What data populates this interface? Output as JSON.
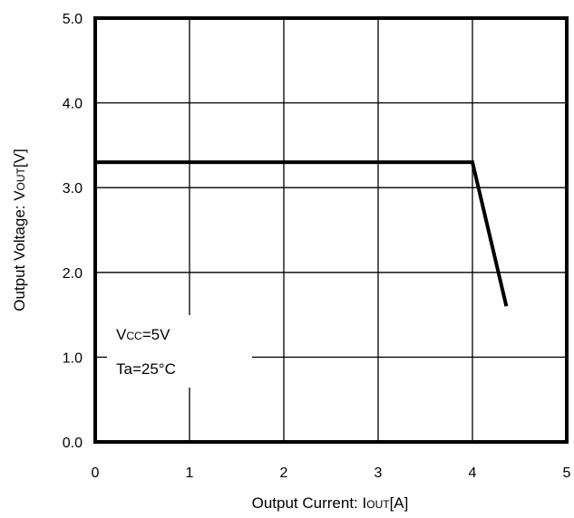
{
  "chart_data": {
    "type": "line",
    "xlabel_main": "Output Current: I",
    "xlabel_sub": "OUT",
    "xlabel_unit": "[A]",
    "ylabel_main": "Output Voltage: V",
    "ylabel_sub": "OUT",
    "ylabel_unit": "[V]",
    "xlim": [
      0,
      5
    ],
    "ylim": [
      0,
      5
    ],
    "x_ticks": [
      "0",
      "1",
      "2",
      "3",
      "4",
      "5"
    ],
    "y_ticks": [
      "0.0",
      "1.0",
      "2.0",
      "3.0",
      "4.0",
      "5.0"
    ],
    "grid": true,
    "series": [
      {
        "x": [
          0,
          3.3,
          3.6,
          4.0,
          4.36
        ],
        "y": [
          3.3,
          3.3,
          3.3,
          3.3,
          1.6
        ]
      }
    ],
    "annotations": {
      "vcc_main": "V",
      "vcc_sub": "CC",
      "vcc_value": "=5V",
      "ta": "Ta=25°C"
    },
    "colors": {
      "line": "#000000",
      "grid": "#000000"
    }
  }
}
